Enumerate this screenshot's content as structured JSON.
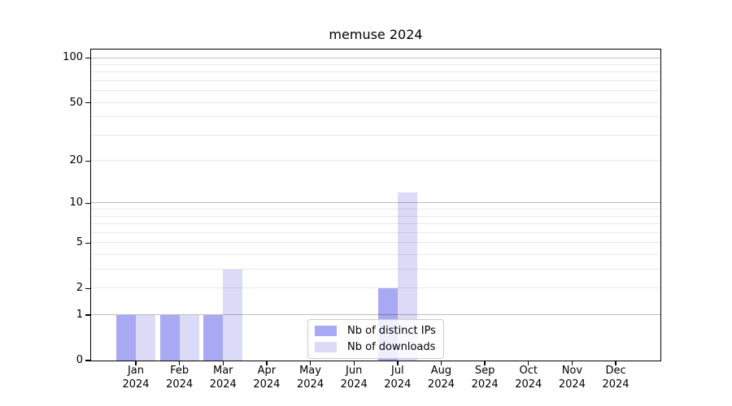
{
  "figure": {
    "title": "memuse 2024"
  },
  "chart_data": {
    "type": "bar",
    "title": "memuse 2024",
    "categories": [
      "Jan 2024",
      "Feb 2024",
      "Mar 2024",
      "Apr 2024",
      "May 2024",
      "Jun 2024",
      "Jul 2024",
      "Aug 2024",
      "Sep 2024",
      "Oct 2024",
      "Nov 2024",
      "Dec 2024"
    ],
    "x_tick_months": [
      "Jan",
      "Feb",
      "Mar",
      "Apr",
      "May",
      "Jun",
      "Jul",
      "Aug",
      "Sep",
      "Oct",
      "Nov",
      "Dec"
    ],
    "x_tick_year": "2024",
    "series": [
      {
        "name": "Nb of distinct IPs",
        "color": "#a8a8f3",
        "values": [
          1,
          1,
          1,
          0,
          0,
          0,
          2,
          0,
          0,
          0,
          0,
          0
        ]
      },
      {
        "name": "Nb of downloads",
        "color": "#dbdbf8",
        "values": [
          1,
          1,
          3,
          0,
          0,
          0,
          12,
          0,
          0,
          0,
          0,
          0
        ]
      }
    ],
    "xlabel": "",
    "ylabel": "",
    "yscale": "log1p",
    "ylim": [
      0,
      114
    ],
    "yticks": [
      0,
      1,
      2,
      5,
      10,
      20,
      50,
      100
    ],
    "grid": {
      "orientation": "horizontal",
      "major": [
        1,
        10,
        100
      ],
      "minor": [
        2,
        3,
        4,
        5,
        6,
        7,
        8,
        9,
        20,
        30,
        40,
        50,
        60,
        70,
        80,
        90
      ]
    },
    "legend": {
      "position": "lower center",
      "entries": [
        "Nb of distinct IPs",
        "Nb of downloads"
      ]
    }
  },
  "colors": {
    "axis": "#000000",
    "grid_major": "rgba(0,0,0,0.26)",
    "grid_minor": "rgba(0,0,0,0.085)",
    "legend_border": "#cccccc",
    "legend_background": "rgba(255,255,255,0.8)"
  }
}
